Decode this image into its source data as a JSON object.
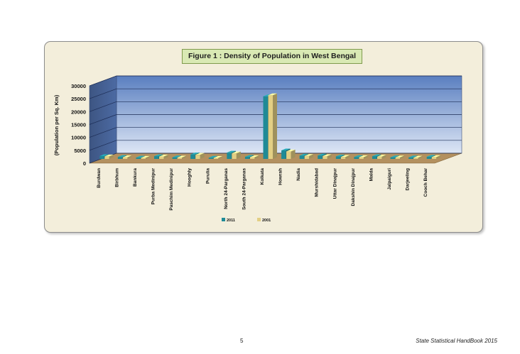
{
  "colors": {
    "series_2011": "#1f8a96",
    "series_2001": "#e3cf84",
    "back_wall_top": "#5a7fc0",
    "back_wall_bottom": "#dde6f5",
    "side_wall": "#4c6aa3",
    "floor": "#b3905f",
    "frame_bg": "#f3eedb",
    "title_bg": "#d9e9b4"
  },
  "footer": {
    "page_number": "5",
    "publication": "State Statistical HandBook 2015"
  },
  "chart_data": {
    "type": "bar",
    "style": "3d-clustered-column",
    "title": "Figure 1 : Density of Population in West Bengal",
    "ylabel": "(Population per  Sq. Km)",
    "xlabel": "",
    "ylim": [
      0,
      30000
    ],
    "yticks": [
      0,
      5000,
      10000,
      15000,
      20000,
      25000,
      30000
    ],
    "grid": true,
    "legend_position": "bottom",
    "categories": [
      "Burdwan",
      "Birbhum",
      "Bankura",
      "Purba Medinipur",
      "Paschim Medinipur",
      "Hooghly",
      "Purulia",
      "North 24-Parganas",
      "South 24-Parganas",
      "Kolkata",
      "Howrah",
      "Nadia",
      "Murshidabad",
      "Uttar Dinajpur",
      "Dakshin Dinajpur",
      "Malda",
      "Jalpaiguri",
      "Darjeeling",
      "Cooch Behar"
    ],
    "series": [
      {
        "name": "2011",
        "values": [
          1100,
          771,
          523,
          1076,
          636,
          1753,
          468,
          2445,
          819,
          24306,
          3306,
          1316,
          1334,
          956,
          753,
          1071,
          621,
          586,
          833
        ]
      },
      {
        "name": "2001",
        "values": [
          985,
          663,
          464,
          934,
          560,
          1601,
          401,
          2182,
          694,
          24718,
          2913,
          1172,
          1102,
          778,
          677,
          881,
          568,
          511,
          732
        ]
      }
    ]
  }
}
